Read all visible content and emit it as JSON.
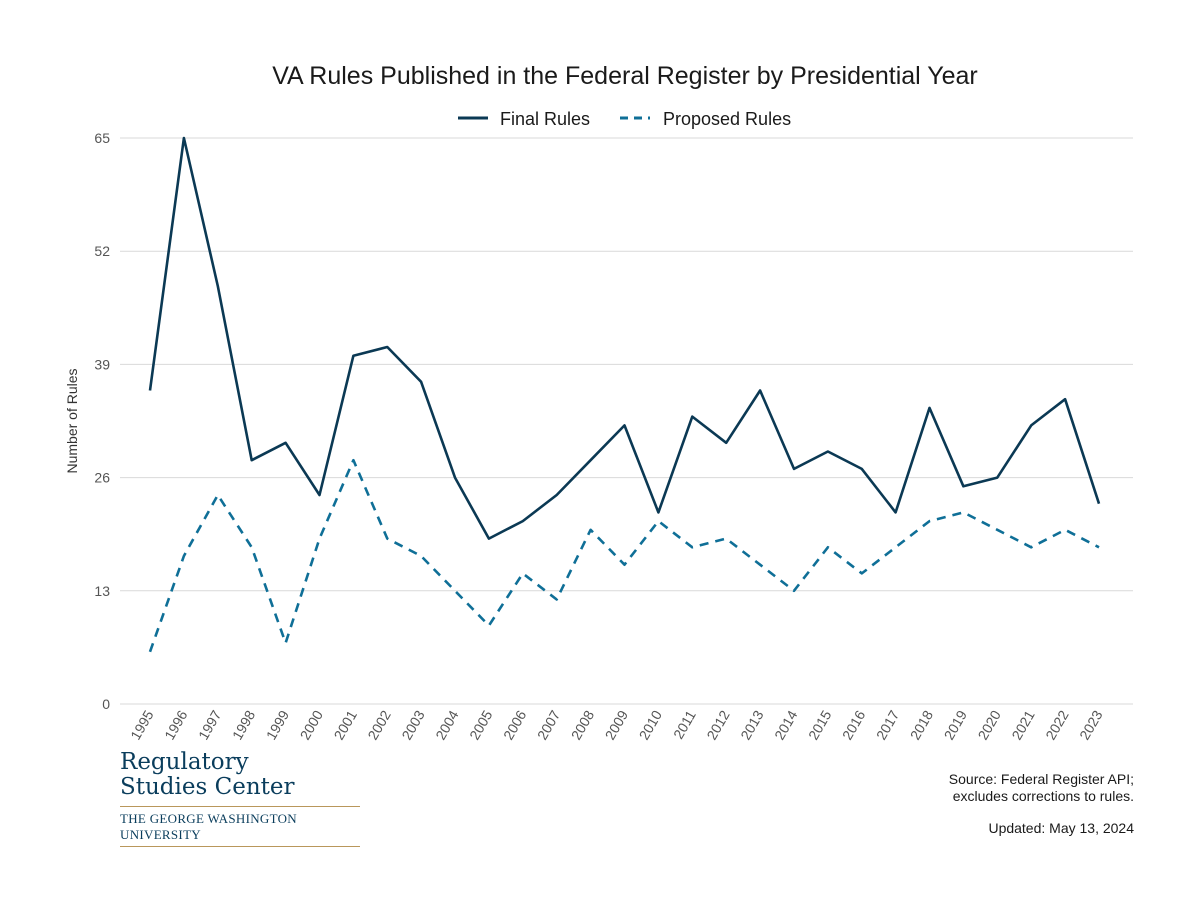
{
  "chart_data": {
    "type": "line",
    "title": "VA Rules Published in the Federal Register by Presidential Year",
    "ylabel": "Number of Rules",
    "xlabel": "",
    "ylim": [
      0,
      65
    ],
    "yticks": [
      0,
      13,
      26,
      39,
      52,
      65
    ],
    "grid": true,
    "legend_position": "top-center",
    "x": [
      "1995",
      "1996",
      "1997",
      "1998",
      "1999",
      "2000",
      "2001",
      "2002",
      "2003",
      "2004",
      "2005",
      "2006",
      "2007",
      "2008",
      "2009",
      "2010",
      "2011",
      "2012",
      "2013",
      "2014",
      "2015",
      "2016",
      "2017",
      "2018",
      "2019",
      "2020",
      "2021",
      "2022",
      "2023"
    ],
    "series": [
      {
        "name": "Final Rules",
        "style": "solid",
        "color": "#0b3954",
        "values": [
          36,
          65,
          48,
          28,
          30,
          24,
          40,
          41,
          37,
          26,
          19,
          21,
          24,
          28,
          32,
          22,
          33,
          30,
          36,
          27,
          29,
          27,
          22,
          34,
          25,
          26,
          32,
          35,
          23
        ]
      },
      {
        "name": "Proposed Rules",
        "style": "dashed",
        "color": "#0f6f97",
        "values": [
          6,
          17,
          24,
          18,
          7,
          19,
          28,
          19,
          17,
          13,
          9,
          15,
          12,
          20,
          16,
          21,
          18,
          19,
          16,
          13,
          18,
          15,
          18,
          21,
          22,
          20,
          18,
          20,
          18
        ]
      }
    ]
  },
  "logo": {
    "line1": "Regulatory",
    "line2": "Studies Center",
    "university": "THE GEORGE WASHINGTON UNIVERSITY"
  },
  "source": {
    "line1": "Source: Federal Register API;",
    "line2": "excludes corrections to rules."
  },
  "updated": "Updated: May 13, 2024"
}
